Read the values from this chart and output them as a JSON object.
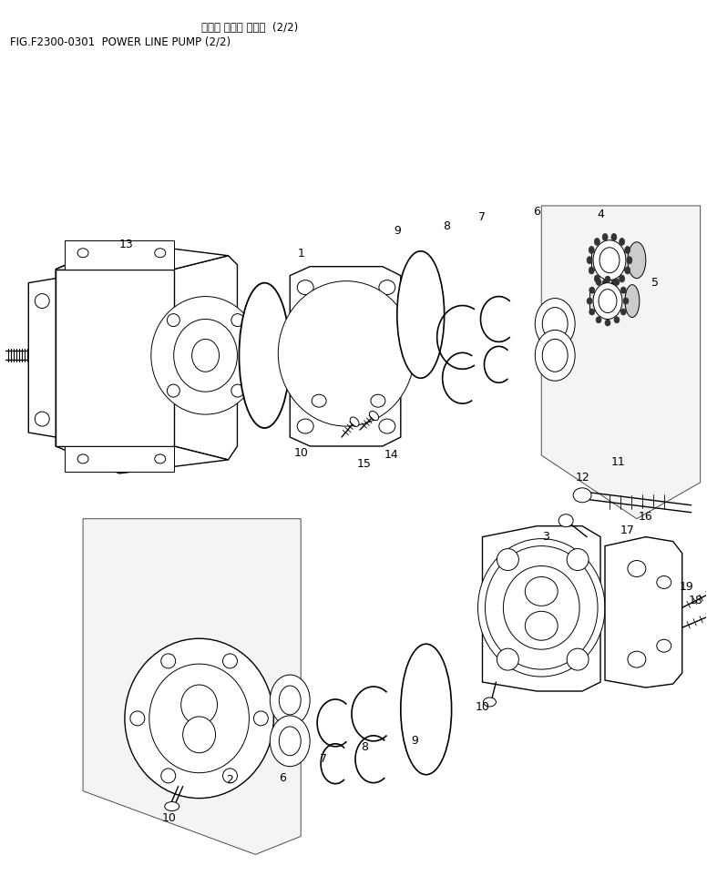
{
  "title_jp": "パワー ライン ポンプ  (2/2)",
  "title_en": "FIG.F2300-0301  POWER LINE PUMP (2/2)",
  "bg_color": "#ffffff",
  "fig_width": 7.76,
  "fig_height": 9.73
}
